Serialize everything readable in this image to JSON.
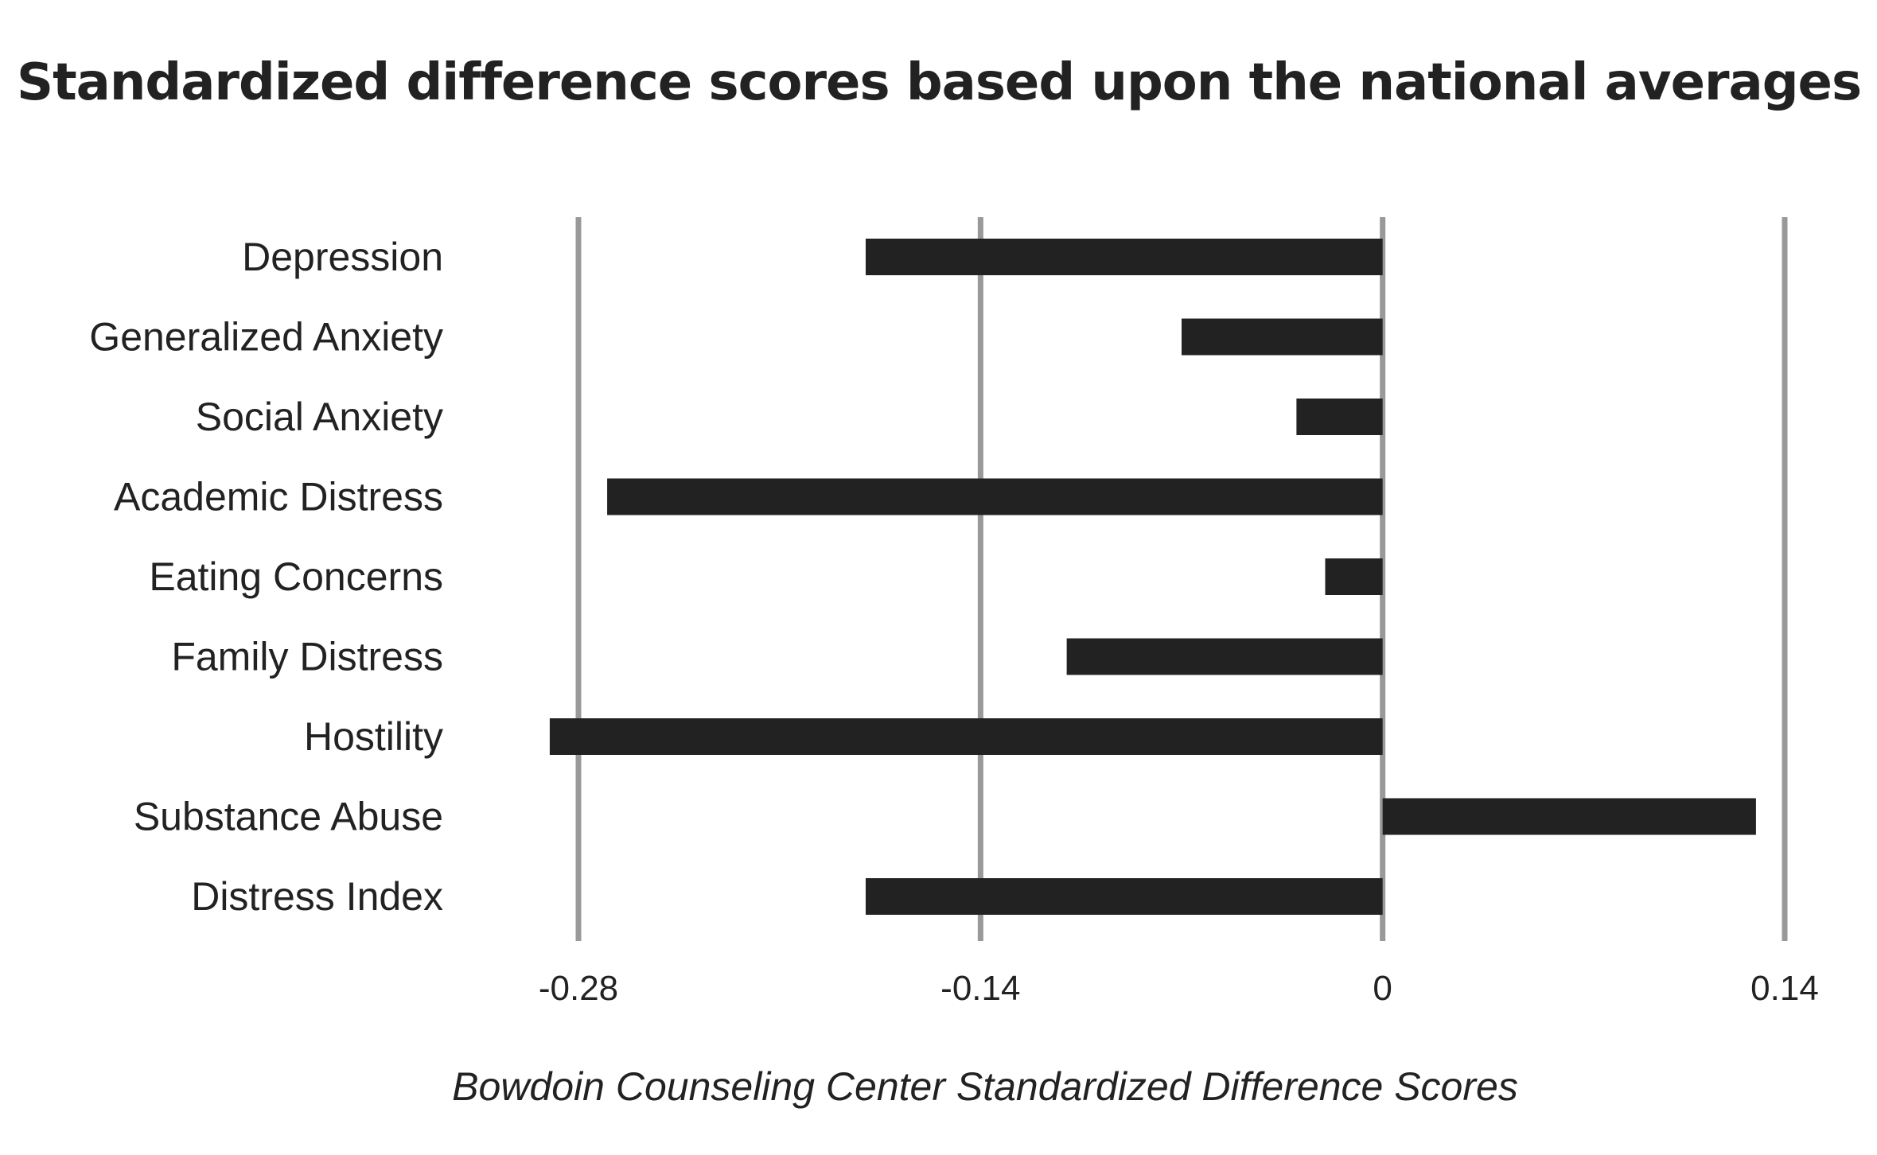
{
  "chart_data": {
    "type": "bar",
    "orientation": "horizontal",
    "title": "Standardized difference scores based upon the national averages",
    "xlabel": "Bowdoin Counseling Center Standardized Difference Scores",
    "ylabel": "",
    "categories": [
      "Depression",
      "Generalized Anxiety",
      "Social Anxiety",
      "Academic Distress",
      "Eating Concerns",
      "Family Distress",
      "Hostility",
      "Substance Abuse",
      "Distress Index"
    ],
    "values": [
      -0.18,
      -0.07,
      -0.03,
      -0.27,
      -0.02,
      -0.11,
      -0.29,
      0.13,
      -0.18
    ],
    "xlim": [
      -0.28,
      0.14
    ],
    "xticks": [
      -0.28,
      -0.14,
      0,
      0.14
    ],
    "xtick_labels": [
      "-0.28",
      "-0.14",
      "0",
      "0.14"
    ],
    "grid": "vertical",
    "legend": "none",
    "colors": {
      "bar": "#222222",
      "grid": "#999999",
      "text": "#222222"
    }
  }
}
